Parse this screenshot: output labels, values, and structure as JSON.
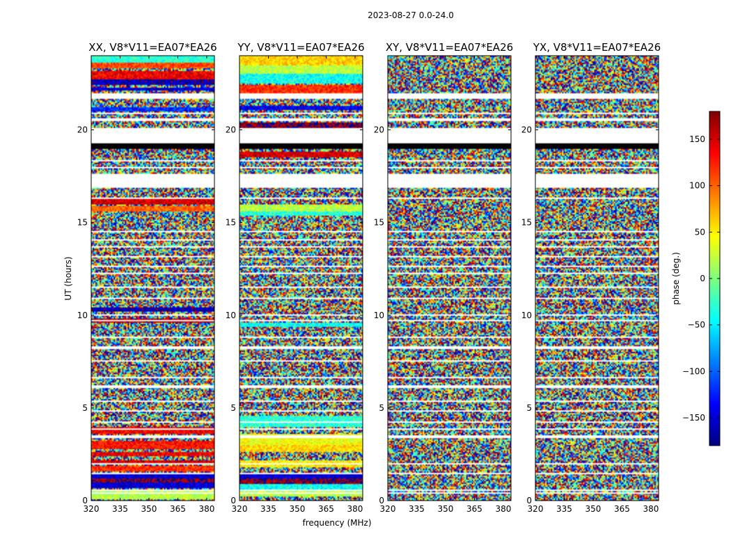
{
  "chart_data": {
    "type": "heatmap",
    "suptitle": "2023-08-27 0.0-24.0",
    "xlabel": "frequency (MHz)",
    "ylabel": "UT (hours)",
    "xlim": [
      320,
      384
    ],
    "ylim": [
      0,
      24
    ],
    "xticks": [
      320,
      335,
      350,
      365,
      380
    ],
    "yticks": [
      0,
      5,
      10,
      15,
      20
    ],
    "panels": [
      {
        "title": "XX, V8*V11=EA07*EA26",
        "pol": "XX",
        "coherent_bands": [
          [
            0.1,
            0.5,
            20
          ],
          [
            0.65,
            0.95,
            -150
          ],
          [
            0.95,
            1.2,
            175
          ],
          [
            1.2,
            1.4,
            -150
          ],
          [
            1.6,
            1.9,
            120
          ],
          [
            2.0,
            2.2,
            150
          ],
          [
            2.4,
            2.6,
            140
          ],
          [
            2.8,
            3.2,
            130
          ],
          [
            3.6,
            4.0,
            140
          ],
          [
            9.6,
            9.8,
            160
          ],
          [
            10.2,
            10.4,
            -160
          ],
          [
            15.6,
            15.9,
            100
          ],
          [
            16.0,
            16.3,
            150
          ],
          [
            21.0,
            21.2,
            -120
          ],
          [
            22.1,
            22.3,
            -150
          ],
          [
            22.4,
            22.7,
            -160
          ],
          [
            22.7,
            23.2,
            140
          ],
          [
            23.3,
            23.6,
            110
          ],
          [
            23.6,
            24.0,
            -30
          ]
        ]
      },
      {
        "title": "YY, V8*V11=EA07*EA26",
        "pol": "YY",
        "coherent_bands": [
          [
            0.2,
            0.5,
            20
          ],
          [
            0.6,
            0.9,
            -40
          ],
          [
            0.9,
            1.2,
            175
          ],
          [
            1.2,
            1.4,
            -150
          ],
          [
            1.8,
            2.2,
            50
          ],
          [
            2.6,
            3.0,
            60
          ],
          [
            3.0,
            3.6,
            40
          ],
          [
            4.0,
            4.6,
            -30
          ],
          [
            9.4,
            9.6,
            -40
          ],
          [
            15.4,
            15.6,
            -30
          ],
          [
            15.6,
            16.0,
            20
          ],
          [
            18.5,
            18.8,
            150
          ],
          [
            20.0,
            20.4,
            175
          ],
          [
            21.1,
            21.3,
            -140
          ],
          [
            22.0,
            22.4,
            120
          ],
          [
            22.5,
            23.0,
            -40
          ],
          [
            23.0,
            23.5,
            20
          ],
          [
            23.5,
            24.0,
            60
          ]
        ]
      },
      {
        "title": "XY, V8*V11=EA07*EA26",
        "pol": "XY",
        "coherent_bands": []
      },
      {
        "title": "YX, V8*V11=EA07*EA26",
        "pol": "YX",
        "coherent_bands": []
      }
    ],
    "flagged_rows": [
      [
        0.36,
        0.42
      ],
      [
        0.54,
        0.6
      ],
      [
        0.88,
        0.92
      ],
      [
        1.44,
        1.5
      ],
      [
        1.95,
        2.0
      ],
      [
        2.3,
        2.35
      ],
      [
        2.68,
        2.72
      ],
      [
        3.4,
        3.5
      ],
      [
        3.86,
        3.9
      ],
      [
        4.2,
        4.25
      ],
      [
        4.55,
        4.6
      ],
      [
        4.8,
        4.9
      ],
      [
        5.35,
        5.4
      ],
      [
        6.1,
        6.2
      ],
      [
        6.6,
        6.65
      ],
      [
        7.1,
        7.15
      ],
      [
        7.5,
        7.6
      ],
      [
        8.2,
        8.3
      ],
      [
        8.8,
        8.85
      ],
      [
        9.2,
        9.25
      ],
      [
        9.7,
        9.74
      ],
      [
        10.0,
        10.05
      ],
      [
        10.4,
        10.45
      ],
      [
        10.9,
        10.95
      ],
      [
        11.45,
        11.55
      ],
      [
        12.2,
        12.3
      ],
      [
        12.6,
        12.65
      ],
      [
        13.15,
        13.2
      ],
      [
        13.65,
        13.7
      ],
      [
        14.0,
        14.1
      ],
      [
        14.5,
        14.55
      ],
      [
        15.05,
        15.1
      ],
      [
        15.5,
        15.55
      ],
      [
        16.3,
        16.35
      ],
      [
        16.85,
        17.6
      ],
      [
        17.9,
        18.0
      ],
      [
        18.3,
        18.35
      ],
      [
        19.3,
        20.1
      ],
      [
        20.5,
        20.65
      ],
      [
        20.85,
        20.95
      ],
      [
        21.65,
        22.0
      ]
    ],
    "blank_bands": [
      [
        16.9,
        17.6
      ],
      [
        19.3,
        20.1
      ],
      [
        21.65,
        22.0
      ]
    ],
    "black_band": [
      19.0,
      19.3
    ],
    "colorbar": {
      "label": "phase (deg.)",
      "range": [
        -180,
        180
      ],
      "ticks": [
        -150,
        -100,
        -50,
        0,
        50,
        100,
        150
      ],
      "tick_labels": [
        "−150",
        "−100",
        "−50",
        "0",
        "50",
        "100",
        "150"
      ],
      "colormap": [
        "#00007f",
        "#0000ff",
        "#007fff",
        "#00ffff",
        "#7fff7f",
        "#ffff00",
        "#ff7f00",
        "#ff0000",
        "#7f0000"
      ]
    }
  }
}
